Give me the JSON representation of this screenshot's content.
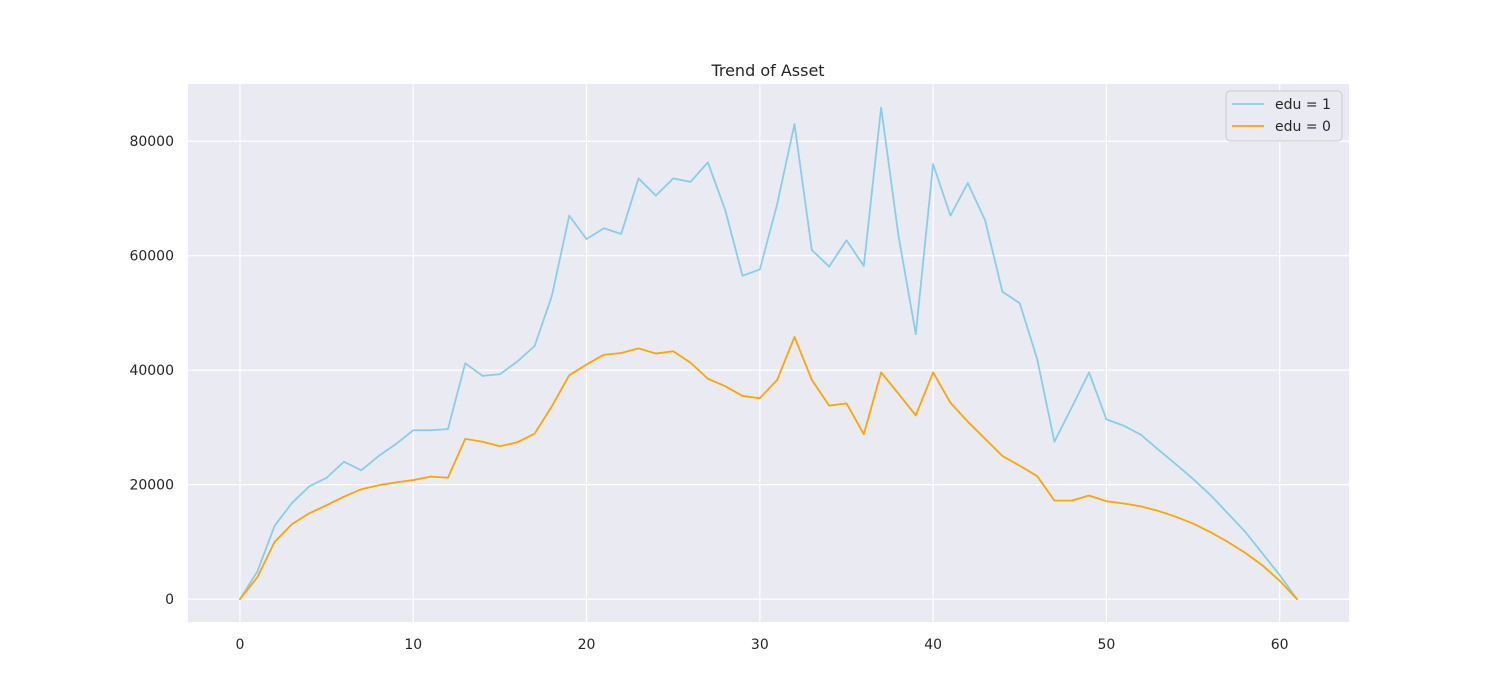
{
  "chart_data": {
    "type": "line",
    "title": "Trend of Asset",
    "xlabel": "",
    "ylabel": "",
    "xlim": [
      -3,
      64
    ],
    "ylim": [
      -4000,
      90000
    ],
    "x_ticks": [
      0,
      10,
      20,
      30,
      40,
      50,
      60
    ],
    "y_ticks": [
      0,
      20000,
      40000,
      60000,
      80000
    ],
    "grid": true,
    "legend_position": "top-right",
    "x": [
      0,
      1,
      2,
      3,
      4,
      5,
      6,
      7,
      8,
      9,
      10,
      11,
      12,
      13,
      14,
      15,
      16,
      17,
      18,
      19,
      20,
      21,
      22,
      23,
      24,
      25,
      26,
      27,
      28,
      29,
      30,
      31,
      32,
      33,
      34,
      35,
      36,
      37,
      38,
      39,
      40,
      41,
      42,
      43,
      44,
      45,
      46,
      47,
      48,
      49,
      50,
      51,
      52,
      53,
      54,
      55,
      56,
      57,
      58,
      59,
      60,
      61
    ],
    "series": [
      {
        "name": "edu = 1",
        "color": "#87ceeb",
        "values": [
          0,
          4800,
          12800,
          16800,
          19700,
          21200,
          24000,
          22500,
          25000,
          27100,
          29500,
          29500,
          29700,
          41200,
          39000,
          39300,
          41500,
          44200,
          53000,
          67000,
          62900,
          64800,
          63800,
          73500,
          70500,
          73500,
          72900,
          76300,
          68000,
          56500,
          57600,
          69000,
          83000,
          61000,
          58100,
          62700,
          58200,
          85900,
          63500,
          46300,
          76000,
          67000,
          72700,
          66200,
          53700,
          51700,
          42000,
          27500,
          33500,
          39600,
          31400,
          30300,
          28700,
          26100,
          23600,
          21000,
          18200,
          15000,
          11800,
          8000,
          4200,
          0
        ]
      },
      {
        "name": "edu = 0",
        "color": "#ffa500",
        "values": [
          0,
          3800,
          10000,
          13100,
          15000,
          16400,
          17900,
          19200,
          19900,
          20400,
          20800,
          21400,
          21200,
          28000,
          27500,
          26700,
          27400,
          28900,
          33700,
          39100,
          41000,
          42700,
          43000,
          43800,
          42900,
          43300,
          41300,
          38500,
          37200,
          35500,
          35100,
          38300,
          45800,
          38300,
          33800,
          34200,
          28800,
          39600,
          35900,
          32100,
          39600,
          34300,
          31000,
          28000,
          25000,
          23300,
          21500,
          17200,
          17200,
          18100,
          17100,
          16700,
          16200,
          15400,
          14400,
          13200,
          11700,
          10000,
          8100,
          5900,
          3200,
          0
        ]
      }
    ]
  }
}
